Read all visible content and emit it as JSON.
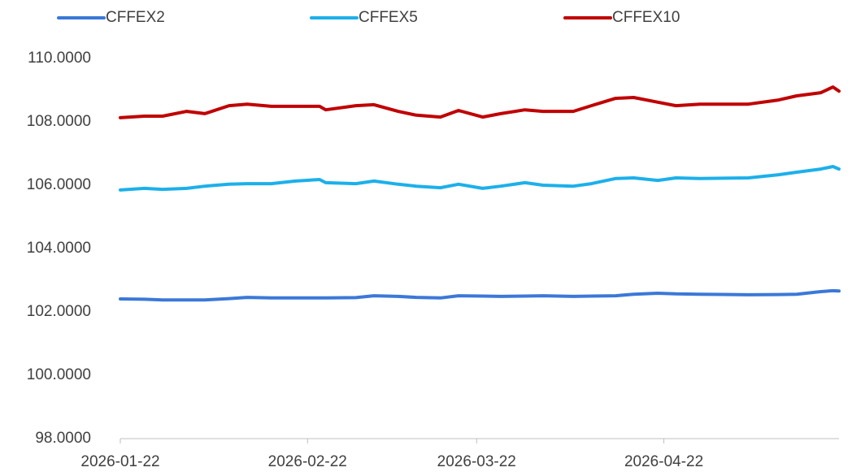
{
  "chart_data": {
    "type": "line",
    "x": [
      "2026-01-22",
      "2026-01-26",
      "2026-01-29",
      "2026-02-02",
      "2026-02-05",
      "2026-02-09",
      "2026-02-12",
      "2026-02-16",
      "2026-02-20",
      "2026-02-24",
      "2026-02-25",
      "2026-03-02",
      "2026-03-05",
      "2026-03-09",
      "2026-03-12",
      "2026-03-16",
      "2026-03-19",
      "2026-03-23",
      "2026-03-26",
      "2026-03-30",
      "2026-04-02",
      "2026-04-07",
      "2026-04-10",
      "2026-04-14",
      "2026-04-17",
      "2026-04-21",
      "2026-04-24",
      "2026-04-28",
      "2026-05-06",
      "2026-05-11",
      "2026-05-14",
      "2026-05-18",
      "2026-05-20",
      "2026-05-21"
    ],
    "series": [
      {
        "name": "CFFEX2",
        "color": "#3b78d8",
        "values": [
          102.41,
          102.4,
          102.38,
          102.38,
          102.38,
          102.42,
          102.46,
          102.44,
          102.44,
          102.44,
          102.44,
          102.45,
          102.51,
          102.49,
          102.46,
          102.44,
          102.51,
          102.5,
          102.49,
          102.5,
          102.51,
          102.49,
          102.5,
          102.51,
          102.56,
          102.59,
          102.57,
          102.56,
          102.54,
          102.55,
          102.56,
          102.64,
          102.67,
          102.66
        ]
      },
      {
        "name": "CFFEX5",
        "color": "#1cb0ea",
        "values": [
          105.85,
          105.9,
          105.87,
          105.9,
          105.97,
          106.03,
          106.05,
          106.05,
          106.13,
          106.18,
          106.08,
          106.05,
          106.13,
          106.03,
          105.97,
          105.92,
          106.03,
          105.9,
          105.97,
          106.08,
          106.0,
          105.97,
          106.05,
          106.21,
          106.23,
          106.15,
          106.23,
          106.21,
          106.23,
          106.33,
          106.41,
          106.51,
          106.59,
          106.51
        ]
      },
      {
        "name": "CFFEX10",
        "color": "#c00000",
        "values": [
          108.13,
          108.18,
          108.18,
          108.33,
          108.26,
          108.51,
          108.56,
          108.49,
          108.49,
          108.49,
          108.38,
          108.51,
          108.54,
          108.33,
          108.21,
          108.15,
          108.36,
          108.15,
          108.26,
          108.38,
          108.33,
          108.33,
          108.51,
          108.74,
          108.77,
          108.62,
          108.51,
          108.56,
          108.56,
          108.69,
          108.82,
          108.92,
          109.1,
          108.97
        ]
      }
    ],
    "xlim": [
      "2026-01-22",
      "2026-05-21"
    ],
    "xticks": [
      "2026-01-22",
      "2026-02-22",
      "2026-03-22",
      "2026-04-22"
    ],
    "ylim": [
      98,
      110
    ],
    "yticks": [
      {
        "value": 98,
        "label": "98.0000"
      },
      {
        "value": 100,
        "label": "100.0000"
      },
      {
        "value": 102,
        "label": "102.0000"
      },
      {
        "value": 104,
        "label": "104.0000"
      },
      {
        "value": 106,
        "label": "106.0000"
      },
      {
        "value": 108,
        "label": "108.0000"
      },
      {
        "value": 110,
        "label": "110.0000"
      }
    ],
    "grid": false,
    "legend": "top"
  }
}
